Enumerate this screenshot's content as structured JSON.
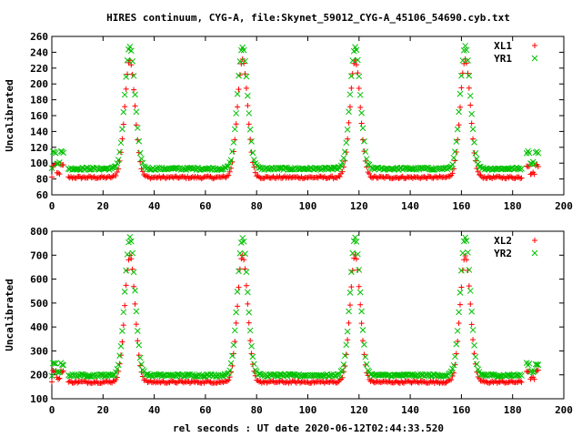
{
  "title": "HIRES continuum, CYG-A, file:Skynet_59012_CYG-A_45106_54690.cyb.txt",
  "x_axis_label": "rel seconds : UT date 2020-06-12T02:44:33.520",
  "chart_data": [
    {
      "type": "scatter",
      "ylabel": "Uncalibrated",
      "xlim": [
        0,
        200
      ],
      "ylim": [
        60,
        260
      ],
      "x_ticks": [
        0,
        20,
        40,
        60,
        80,
        100,
        120,
        140,
        160,
        180,
        200
      ],
      "y_ticks": [
        60,
        80,
        100,
        120,
        140,
        160,
        180,
        200,
        220,
        240,
        260
      ],
      "grid": false,
      "legend_position": "top-right",
      "scan": {
        "x_start": 0,
        "x_end": 190,
        "x_step": 0.5,
        "peak_centers": [
          30.5,
          74.5,
          118.5,
          161.5
        ],
        "peak_width": 2.0,
        "off_source_x": [
          [
            0.5,
            4.5
          ],
          [
            185.5,
            190
          ]
        ]
      },
      "series": [
        {
          "name": "XL1",
          "color": "#ff0000",
          "marker": "plus",
          "baseline": 82,
          "peak_top": 230,
          "off_source_level": 97,
          "jitter": 1.5
        },
        {
          "name": "YR1",
          "color": "#00c000",
          "marker": "cross",
          "baseline": 93,
          "peak_top": 247,
          "off_source_level": 114,
          "jitter": 1.5
        }
      ]
    },
    {
      "type": "scatter",
      "ylabel": "Uncalibrated",
      "xlim": [
        0,
        200
      ],
      "ylim": [
        100,
        800
      ],
      "x_ticks": [
        0,
        20,
        40,
        60,
        80,
        100,
        120,
        140,
        160,
        180,
        200
      ],
      "y_ticks": [
        100,
        200,
        300,
        400,
        500,
        600,
        700,
        800
      ],
      "grid": false,
      "legend_position": "top-right",
      "scan": {
        "x_start": 0,
        "x_end": 190,
        "x_step": 0.5,
        "peak_centers": [
          30.5,
          74.5,
          118.5,
          161.5
        ],
        "peak_width": 2.0,
        "off_source_x": [
          [
            0.5,
            4.5
          ],
          [
            185.5,
            190
          ]
        ]
      },
      "series": [
        {
          "name": "XL2",
          "color": "#ff0000",
          "marker": "plus",
          "baseline": 170,
          "peak_top": 700,
          "off_source_level": 215,
          "jitter": 5
        },
        {
          "name": "YR2",
          "color": "#00c000",
          "marker": "cross",
          "baseline": 198,
          "peak_top": 775,
          "off_source_level": 245,
          "jitter": 5
        }
      ]
    }
  ]
}
